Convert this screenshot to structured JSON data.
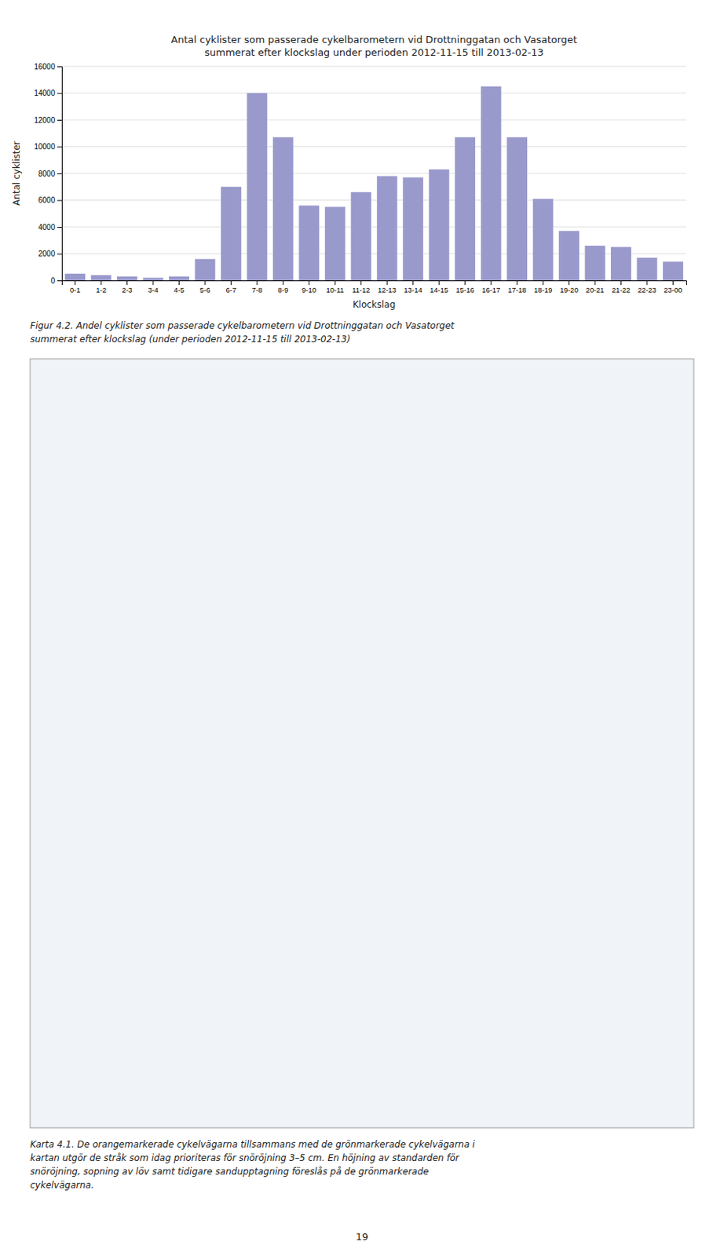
{
  "chart_data": {
    "type": "bar",
    "title": "Antal cyklister som passerade cykelbarometern vid Drottninggatan och Vasatorget\nsummerat efter klockslag under perioden 2012-11-15 till 2013-02-13",
    "x_label": "Klockslag",
    "y_label": "Antal cyklister",
    "categories": [
      "0-1",
      "1-2",
      "2-3",
      "3-4",
      "4-5",
      "5-6",
      "6-7",
      "7-8",
      "8-9",
      "9-10",
      "10-11",
      "11-12",
      "12-13",
      "13-14",
      "14-15",
      "15-16",
      "16-17",
      "17-18",
      "18-19",
      "19-20",
      "20-21",
      "21-22",
      "22-23",
      "23-00"
    ],
    "values": [
      500,
      400,
      300,
      200,
      300,
      1600,
      7000,
      14000,
      10700,
      5600,
      5500,
      6600,
      7800,
      7700,
      8300,
      10700,
      14500,
      10700,
      6100,
      3700,
      2600,
      2500,
      1700,
      1400
    ],
    "color": "#9999cc",
    "ylim": [
      0,
      16000
    ],
    "yticks": [
      0,
      2000,
      4000,
      6000,
      8000,
      10000,
      12000,
      14000,
      16000
    ],
    "grid": true,
    "annotations": [
      "Figur 4.2. Andel cyklister som passerade cykelbarometern vid Drottninggatan och Vasatorget\nsummerat efter klockslag (under perioden 2012-11-15 till 2013-02-13)",
      "Karta 4.1. De orangemarkerade cykelvägarna tillsammans med de grönmarkerade cykelvägarna i\nkartan utgör de stråk som idag prioriteras för snöröjning 3–5 cm. En höjning av standarden för\nsnöröjning, sopning av löv samt tidigare sandupptagning föreslås på de grönmarkerade\ncykelvägarna.",
      "19"
    ]
  }
}
